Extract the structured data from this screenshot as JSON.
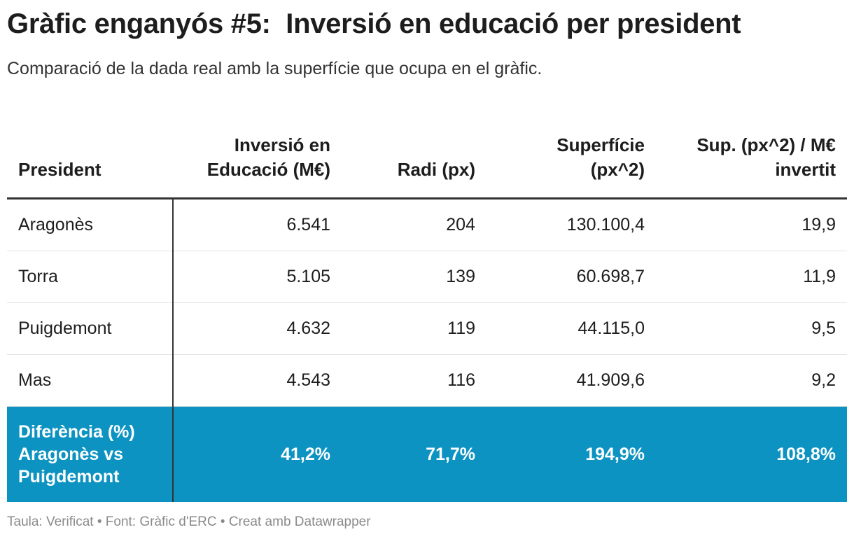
{
  "title": "Gràfic enganyós #5:  Inversió en educació per president",
  "subtitle": "Comparació de la dada real amb la superfície que ocupa en el gràfic.",
  "colors": {
    "highlight_row": "#0d93c1",
    "text": "#1d1d1d",
    "footer": "#8a8a8a"
  },
  "chart_data": {
    "type": "table",
    "columns": [
      "President",
      "Inversió en Educació (M€)",
      "Radi (px)",
      "Superfície (px^2)",
      "Sup. (px^2) / M€ invertit"
    ],
    "rows": [
      [
        "Aragonès",
        "6.541",
        "204",
        "130.100,4",
        "19,9"
      ],
      [
        "Torra",
        "5.105",
        "139",
        "60.698,7",
        "11,9"
      ],
      [
        "Puigdemont",
        "4.632",
        "119",
        "44.115,0",
        "9,5"
      ],
      [
        "Mas",
        "4.543",
        "116",
        "41.909,6",
        "9,2"
      ]
    ],
    "highlight_row": [
      "Diferència (%) Aragonès vs Puigdemont",
      "41,2%",
      "71,7%",
      "194,9%",
      "108,8%"
    ]
  },
  "footer": "Taula: Verificat • Font: Gràfic d'ERC • Creat amb Datawrapper"
}
